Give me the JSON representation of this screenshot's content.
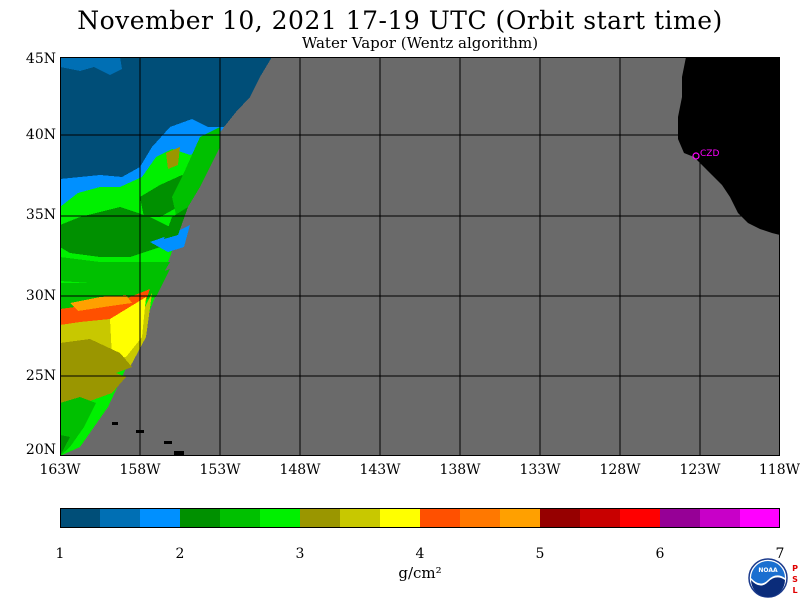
{
  "header": {
    "title": "November 10, 2021  17-19 UTC  (Orbit start time)",
    "subtitle": "Water Vapor (Wentz algorithm)"
  },
  "map": {
    "lat_labels": [
      "45N",
      "40N",
      "35N",
      "30N",
      "25N",
      "20N"
    ],
    "lon_labels": [
      "163W",
      "158W",
      "153W",
      "148W",
      "143W",
      "138W",
      "133W",
      "128W",
      "123W",
      "118W"
    ],
    "station_label": "CZD",
    "colors": {
      "no_data": "#6a6a6a",
      "land": "#000000",
      "station": "#ff00ff"
    }
  },
  "colorbar": {
    "units": "g/cm²",
    "ticks": [
      "1",
      "2",
      "3",
      "4",
      "5",
      "6",
      "7"
    ],
    "colors": [
      "#004e78",
      "#006fb4",
      "#0090ff",
      "#009000",
      "#00c000",
      "#00f000",
      "#9a9600",
      "#c8c800",
      "#ffff00",
      "#ff5000",
      "#ff7800",
      "#ffa000",
      "#960000",
      "#c80000",
      "#ff0000",
      "#960096",
      "#c800c8",
      "#ff00ff"
    ]
  },
  "logos": {
    "noaa": "NOAA",
    "psl": "PSL"
  }
}
